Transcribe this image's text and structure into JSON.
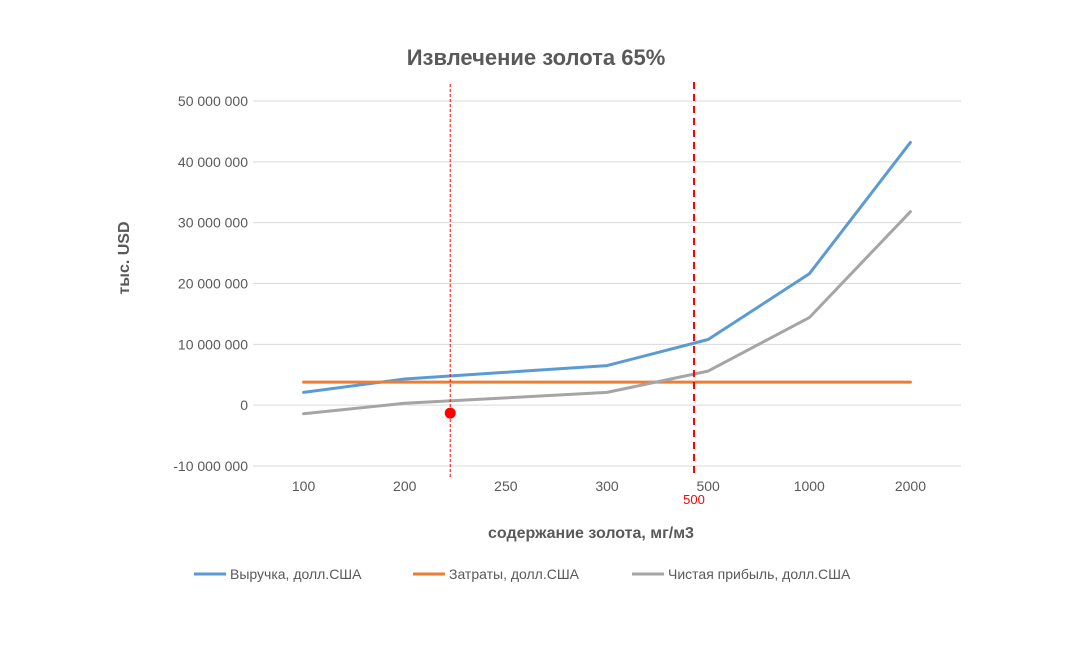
{
  "chart_data": {
    "type": "line",
    "title": "Извлечение золота 65%",
    "xlabel": "содержание золота, мг/м3",
    "ylabel": "тыс. USD",
    "categories": [
      "100",
      "200",
      "250",
      "300",
      "500",
      "1000",
      "2000"
    ],
    "ylim": [
      -10000000,
      50000000
    ],
    "yticks": [
      -10000000,
      0,
      10000000,
      20000000,
      30000000,
      40000000,
      50000000
    ],
    "ytick_labels": [
      "-10 000 000",
      "0",
      "10 000 000",
      "20 000 000",
      "30 000 000",
      "40 000 000",
      "50 000 000"
    ],
    "grid": true,
    "legend_position": "bottom",
    "series": [
      {
        "name": "Выручка, долл.США",
        "color": "#5b9bd5",
        "values": [
          2100000,
          4300000,
          5400000,
          6500000,
          10800000,
          21600000,
          43200000
        ]
      },
      {
        "name": "Затраты, долл.США",
        "color": "#ed7d31",
        "values": [
          3800000,
          3800000,
          3800000,
          3800000,
          3800000,
          3800000,
          3800000
        ]
      },
      {
        "name": "Чистая прибыль, долл.США",
        "color": "#a5a5a5",
        "values": [
          -1400000,
          300000,
          1200000,
          2100000,
          5600000,
          14400000,
          31800000
        ]
      }
    ],
    "annotations": {
      "vlines": [
        {
          "category_position": 1.45,
          "style": "thin-dashed",
          "color": "#ff0000"
        },
        {
          "category_position": 3.86,
          "style": "thick-dashed",
          "color": "#ff0000",
          "label": "500"
        }
      ],
      "point": {
        "category_position": 1.45,
        "y": -1300000,
        "color": "#ff0000"
      }
    }
  }
}
